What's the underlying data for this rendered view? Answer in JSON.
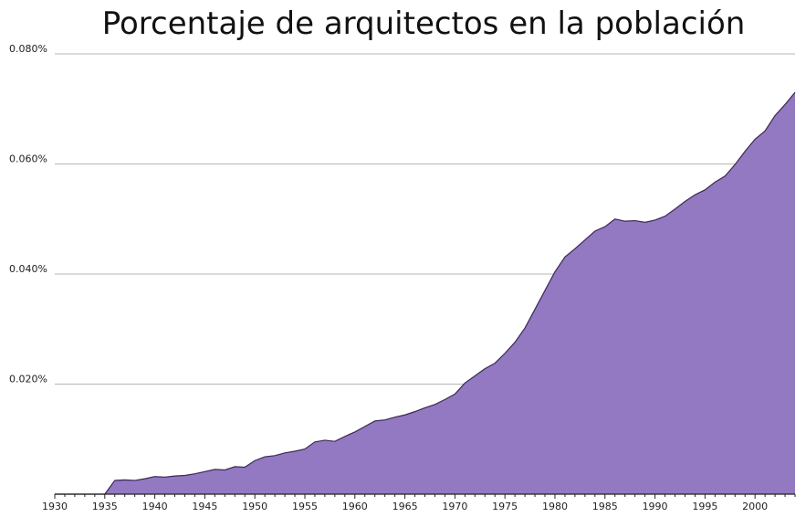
{
  "chart_data": {
    "type": "area",
    "title": "Porcentaje de arquitectos en la población",
    "xlabel": "",
    "ylabel": "",
    "xlim": [
      1930,
      2004
    ],
    "ylim": [
      0,
      0.08
    ],
    "grid": true,
    "y_ticks": [
      {
        "value": 0.02,
        "label": "0.020%"
      },
      {
        "value": 0.04,
        "label": "0.040%"
      },
      {
        "value": 0.06,
        "label": "0.060%"
      },
      {
        "value": 0.08,
        "label": "0.080%"
      }
    ],
    "x_ticks": [
      {
        "value": 1930,
        "label": "1930"
      },
      {
        "value": 1935,
        "label": "1935"
      },
      {
        "value": 1940,
        "label": "1940"
      },
      {
        "value": 1945,
        "label": "1945"
      },
      {
        "value": 1950,
        "label": "1950"
      },
      {
        "value": 1955,
        "label": "1955"
      },
      {
        "value": 1960,
        "label": "1960"
      },
      {
        "value": 1965,
        "label": "1965"
      },
      {
        "value": 1970,
        "label": "1970"
      },
      {
        "value": 1975,
        "label": "1975"
      },
      {
        "value": 1980,
        "label": "1980"
      },
      {
        "value": 1985,
        "label": "1985"
      },
      {
        "value": 1990,
        "label": "1990"
      },
      {
        "value": 1995,
        "label": "1995"
      },
      {
        "value": 2000,
        "label": "2000"
      }
    ],
    "fill_color": "#9378c2",
    "line_color": "#3a2a55",
    "series": [
      {
        "x": [
          1930,
          1931,
          1932,
          1933,
          1934,
          1935,
          1936,
          1937,
          1938,
          1939,
          1940,
          1941,
          1942,
          1943,
          1944,
          1945,
          1946,
          1947,
          1948,
          1949,
          1950,
          1951,
          1952,
          1953,
          1954,
          1955,
          1956,
          1957,
          1958,
          1959,
          1960,
          1961,
          1962,
          1963,
          1964,
          1965,
          1966,
          1967,
          1968,
          1969,
          1970,
          1971,
          1972,
          1973,
          1974,
          1975,
          1976,
          1977,
          1978,
          1979,
          1980,
          1981,
          1982,
          1983,
          1984,
          1985,
          1986,
          1987,
          1988,
          1989,
          1990,
          1991,
          1992,
          1993,
          1994,
          1995,
          1996,
          1997,
          1998,
          1999,
          2000,
          2001,
          2002,
          2003,
          2004
        ],
        "values": [
          0,
          0,
          0,
          0,
          0,
          0,
          0.0025,
          0.0026,
          0.0025,
          0.0028,
          0.0032,
          0.0031,
          0.0033,
          0.0034,
          0.0037,
          0.0041,
          0.0045,
          0.0044,
          0.005,
          0.0049,
          0.0061,
          0.0068,
          0.007,
          0.0075,
          0.0078,
          0.0082,
          0.0095,
          0.0098,
          0.0096,
          0.0105,
          0.0113,
          0.0123,
          0.0133,
          0.0135,
          0.014,
          0.0144,
          0.015,
          0.0157,
          0.0163,
          0.0172,
          0.0182,
          0.0202,
          0.0215,
          0.0228,
          0.0238,
          0.0256,
          0.0276,
          0.0302,
          0.0336,
          0.037,
          0.0404,
          0.0431,
          0.0446,
          0.0462,
          0.0478,
          0.0486,
          0.05,
          0.0496,
          0.0497,
          0.0494,
          0.0498,
          0.0505,
          0.0518,
          0.0532,
          0.0544,
          0.0553,
          0.0567,
          0.0578,
          0.0599,
          0.0623,
          0.0645,
          0.066,
          0.0688,
          0.0708,
          0.073
        ]
      }
    ]
  }
}
